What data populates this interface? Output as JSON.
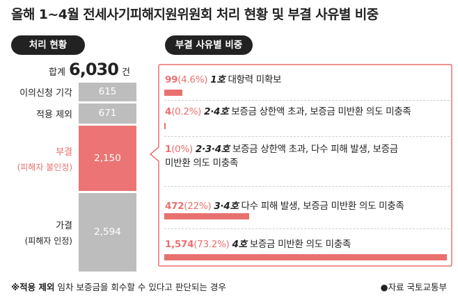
{
  "title": "올해 1~4월 전세사기피해지원위원회 처리 현황 및 부결 사유별 비중",
  "left_pill": "처리 현황",
  "right_pill": "부결 사유별 비중",
  "total": {
    "label": "합계",
    "value": "6,030",
    "unit": "건"
  },
  "chart_data": [
    {
      "type": "bar",
      "title": "처리 현황",
      "total": 6030,
      "categories": [
        "이의신청 기각",
        "적용 제외",
        "부결",
        "가결"
      ],
      "subtitles": [
        "",
        "",
        "(피해자 불인정)",
        "(피해자 인정)"
      ],
      "values": [
        615,
        671,
        2150,
        2594
      ],
      "value_labels": [
        "615",
        "671",
        "2,150",
        "2,594"
      ],
      "colors": [
        "#bdbdbd",
        "#bdbdbd",
        "#ec7474",
        "#bdbdbd"
      ],
      "stacked": true
    },
    {
      "type": "bar",
      "title": "부결 사유별 비중",
      "items": [
        {
          "count": "99",
          "pct": "(4.6%)",
          "code": "1호",
          "desc": "대항력 미확보",
          "desc2": "",
          "value": 99,
          "percent": 4.6
        },
        {
          "count": "4",
          "pct": "(0.2%)",
          "code": "2·4호",
          "desc": "보증금 상한액 초과, 보증금 미반환 의도 미충족",
          "desc2": "",
          "value": 4,
          "percent": 0.2
        },
        {
          "count": "1",
          "pct": "(0%)",
          "code": "2·3·4호",
          "desc": "보증금 상한액 초과, 다수 피해 발생, 보증금",
          "desc2": "미반환 의도 미충족",
          "value": 1,
          "percent": 0
        },
        {
          "count": "472",
          "pct": "(22%)",
          "code": "3·4호",
          "desc": "다수 피해 발생, 보증금 미반환 의도 미충족",
          "desc2": "",
          "value": 472,
          "percent": 22
        },
        {
          "count": "1,574",
          "pct": "(73.2%)",
          "code": "4호",
          "desc": "보증금 미반환 의도 미충족",
          "desc2": "",
          "value": 1574,
          "percent": 73.2
        }
      ]
    }
  ],
  "footnote": {
    "mark": "※적용 제외",
    "text": " 임차 보증금을 회수할 수 있다고 판단되는 경우"
  },
  "source": "●자료 국토교통부",
  "colors": {
    "accent": "#e8716f",
    "gray_bar": "#bdbdbd",
    "dark": "#222222"
  }
}
